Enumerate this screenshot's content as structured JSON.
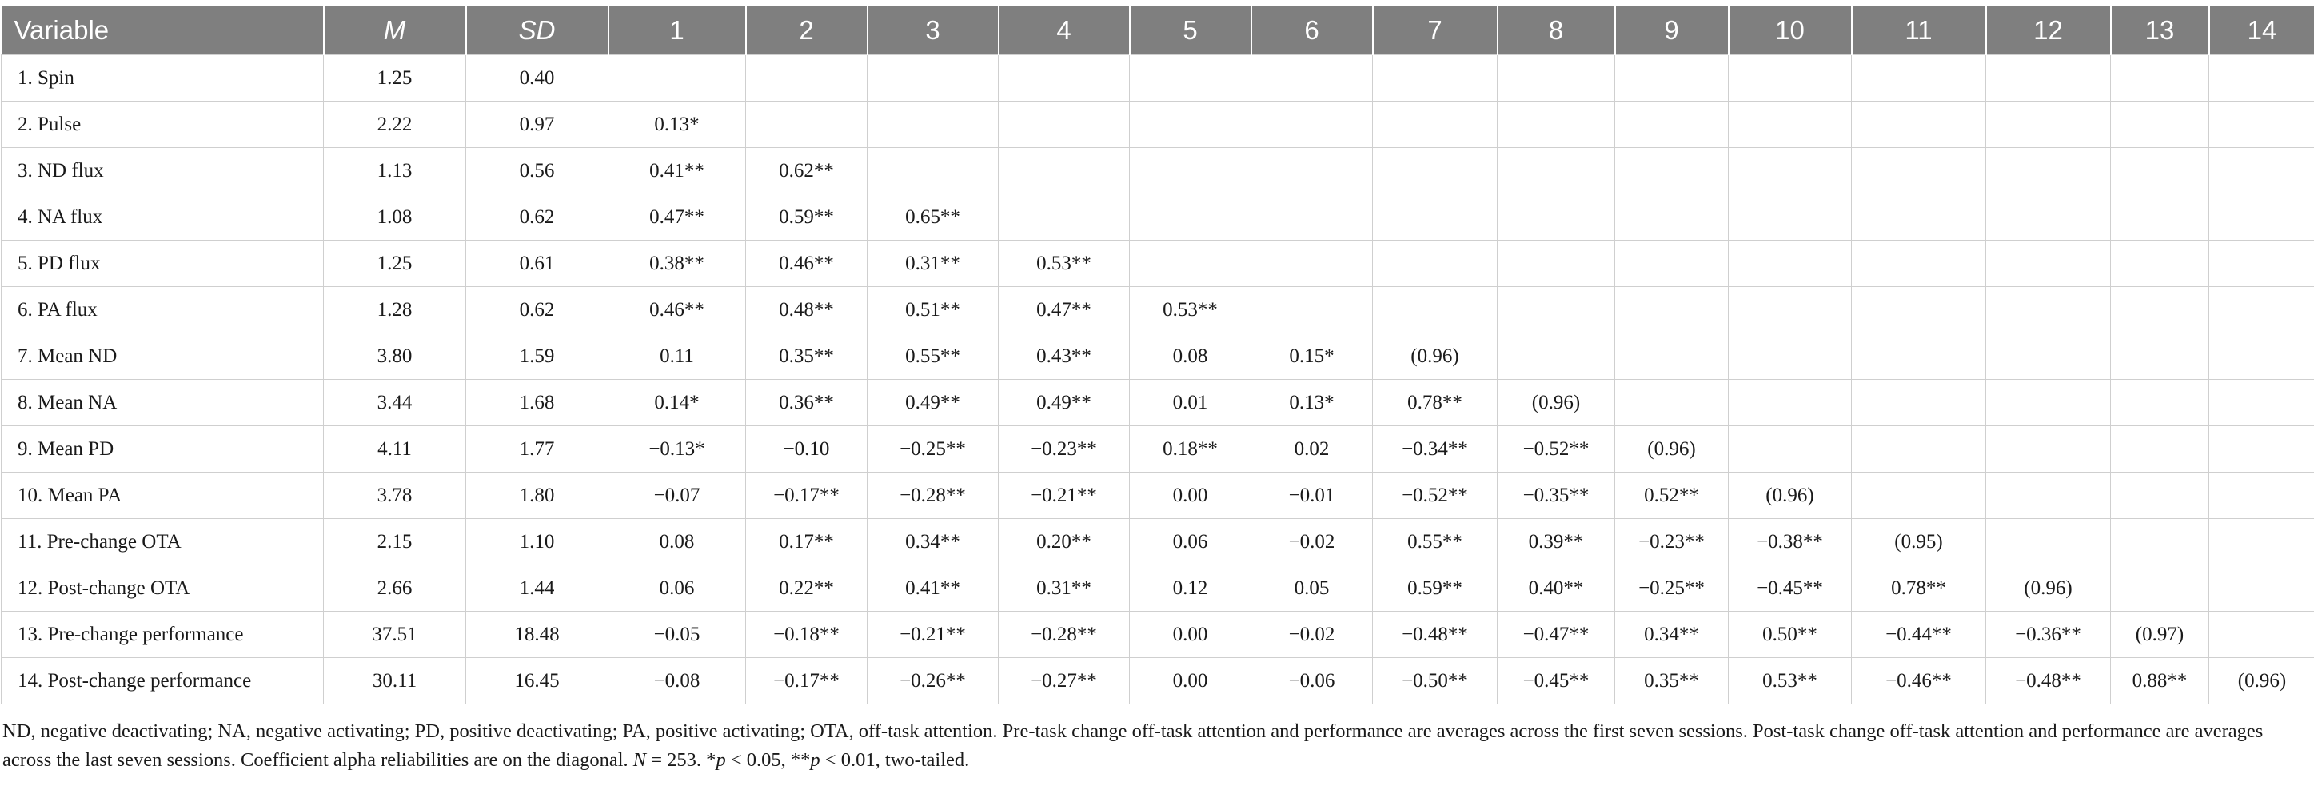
{
  "table": {
    "headers": [
      "Variable",
      "M",
      "SD",
      "1",
      "2",
      "3",
      "4",
      "5",
      "6",
      "7",
      "8",
      "9",
      "10",
      "11",
      "12",
      "13",
      "14"
    ],
    "rows": [
      [
        "1. Spin",
        "1.25",
        "0.40",
        "",
        "",
        "",
        "",
        "",
        "",
        "",
        "",
        "",
        "",
        "",
        "",
        "",
        ""
      ],
      [
        "2. Pulse",
        "2.22",
        "0.97",
        "0.13*",
        "",
        "",
        "",
        "",
        "",
        "",
        "",
        "",
        "",
        "",
        "",
        "",
        ""
      ],
      [
        "3. ND flux",
        "1.13",
        "0.56",
        "0.41**",
        "0.62**",
        "",
        "",
        "",
        "",
        "",
        "",
        "",
        "",
        "",
        "",
        "",
        ""
      ],
      [
        "4. NA flux",
        "1.08",
        "0.62",
        "0.47**",
        "0.59**",
        "0.65**",
        "",
        "",
        "",
        "",
        "",
        "",
        "",
        "",
        "",
        "",
        ""
      ],
      [
        "5. PD flux",
        "1.25",
        "0.61",
        "0.38**",
        "0.46**",
        "0.31**",
        "0.53**",
        "",
        "",
        "",
        "",
        "",
        "",
        "",
        "",
        "",
        ""
      ],
      [
        "6. PA flux",
        "1.28",
        "0.62",
        "0.46**",
        "0.48**",
        "0.51**",
        "0.47**",
        "0.53**",
        "",
        "",
        "",
        "",
        "",
        "",
        "",
        "",
        ""
      ],
      [
        "7. Mean ND",
        "3.80",
        "1.59",
        "0.11",
        "0.35**",
        "0.55**",
        "0.43**",
        "0.08",
        "0.15*",
        "(0.96)",
        "",
        "",
        "",
        "",
        "",
        "",
        ""
      ],
      [
        "8. Mean NA",
        "3.44",
        "1.68",
        "0.14*",
        "0.36**",
        "0.49**",
        "0.49**",
        "0.01",
        "0.13*",
        "0.78**",
        "(0.96)",
        "",
        "",
        "",
        "",
        "",
        ""
      ],
      [
        "9. Mean PD",
        "4.11",
        "1.77",
        "−0.13*",
        "−0.10",
        "−0.25**",
        "−0.23**",
        "0.18**",
        "0.02",
        "−0.34**",
        "−0.52**",
        "(0.96)",
        "",
        "",
        "",
        "",
        ""
      ],
      [
        "10. Mean PA",
        "3.78",
        "1.80",
        "−0.07",
        "−0.17**",
        "−0.28**",
        "−0.21**",
        "0.00",
        "−0.01",
        "−0.52**",
        "−0.35**",
        "0.52**",
        "(0.96)",
        "",
        "",
        "",
        ""
      ],
      [
        "11. Pre-change OTA",
        "2.15",
        "1.10",
        "0.08",
        "0.17**",
        "0.34**",
        "0.20**",
        "0.06",
        "−0.02",
        "0.55**",
        "0.39**",
        "−0.23**",
        "−0.38**",
        "(0.95)",
        "",
        "",
        ""
      ],
      [
        "12. Post-change OTA",
        "2.66",
        "1.44",
        "0.06",
        "0.22**",
        "0.41**",
        "0.31**",
        "0.12",
        "0.05",
        "0.59**",
        "0.40**",
        "−0.25**",
        "−0.45**",
        "0.78**",
        "(0.96)",
        "",
        ""
      ],
      [
        "13. Pre-change performance",
        "37.51",
        "18.48",
        "−0.05",
        "−0.18**",
        "−0.21**",
        "−0.28**",
        "0.00",
        "−0.02",
        "−0.48**",
        "−0.47**",
        "0.34**",
        "0.50**",
        "−0.44**",
        "−0.36**",
        "(0.97)",
        ""
      ],
      [
        "14. Post-change performance",
        "30.11",
        "16.45",
        "−0.08",
        "−0.17**",
        "−0.26**",
        "−0.27**",
        "0.00",
        "−0.06",
        "−0.50**",
        "−0.45**",
        "0.35**",
        "0.53**",
        "−0.46**",
        "−0.48**",
        "0.88**",
        "(0.96)"
      ]
    ]
  },
  "notes": {
    "text_a": "ND, negative deactivating; NA, negative activating; PD, positive deactivating; PA, positive activating; OTA, off-task attention. Pre-task change off-task attention and performance are averages across the first seven sessions. Post-task change off-task attention and performance are averages across the last seven sessions. Coefficient alpha reliabilities are on the diagonal. ",
    "n_label": "N",
    "text_b": " = 253. *",
    "p1_label": "p",
    "text_c": " < 0.05, **",
    "p2_label": "p",
    "text_d": " < 0.01, two-tailed."
  }
}
